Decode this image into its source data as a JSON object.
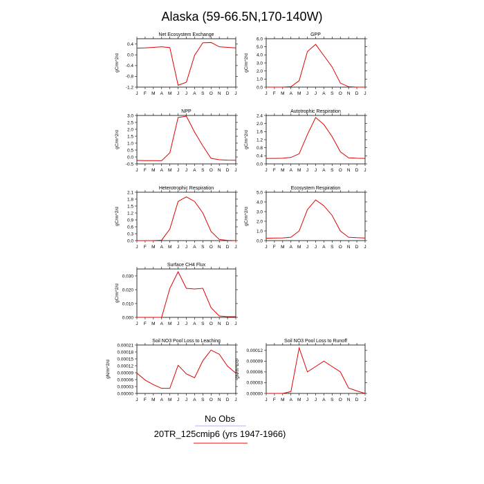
{
  "page": {
    "title": "Alaska (59-66.5N,170-140W)"
  },
  "legend": {
    "items": [
      {
        "label": "No Obs",
        "color": "#000000",
        "line_color": "#b0b0ff"
      },
      {
        "label": "20TR_125cmip6 (yrs 1947-1966)",
        "color": "#000000",
        "line_color": "#ff0000"
      }
    ]
  },
  "chart_data": [
    {
      "type": "line",
      "title": "Net Ecosystem Exchange",
      "ylabel": "gC/m^2/d",
      "x": [
        "J",
        "F",
        "M",
        "A",
        "M",
        "J",
        "J",
        "A",
        "S",
        "O",
        "N",
        "D",
        "J"
      ],
      "ylim": [
        -1.2,
        0.6
      ],
      "yticks": [
        "0.4",
        "0.0",
        "-0.4",
        "-0.8",
        "-1.2"
      ],
      "ytick_values": [
        0.4,
        0.0,
        -0.4,
        -0.8,
        -1.2
      ],
      "series": [
        {
          "color": "#e00000",
          "values": [
            0.25,
            0.26,
            0.28,
            0.3,
            0.27,
            -1.13,
            -1.02,
            -0.02,
            0.45,
            0.46,
            0.3,
            0.28,
            0.26
          ]
        }
      ]
    },
    {
      "type": "line",
      "title": "GPP",
      "ylabel": "gC/m^2/d",
      "x": [
        "J",
        "F",
        "M",
        "A",
        "M",
        "J",
        "J",
        "A",
        "S",
        "O",
        "N",
        "D",
        "J"
      ],
      "ylim": [
        0.0,
        6.0
      ],
      "yticks": [
        "6.0",
        "5.0",
        "4.0",
        "3.0",
        "2.0",
        "1.0",
        "0.0"
      ],
      "ytick_values": [
        6,
        5,
        4,
        3,
        2,
        1,
        0
      ],
      "series": [
        {
          "color": "#e00000",
          "values": [
            0.0,
            0.0,
            0.0,
            0.05,
            0.8,
            4.4,
            5.3,
            3.9,
            2.5,
            0.5,
            0.05,
            0.0,
            0.0
          ]
        }
      ]
    },
    {
      "type": "line",
      "title": "NPP",
      "ylabel": "gC/m^2/d",
      "x": [
        "J",
        "F",
        "M",
        "A",
        "M",
        "J",
        "J",
        "A",
        "S",
        "O",
        "N",
        "D",
        "J"
      ],
      "ylim": [
        -0.5,
        3.0
      ],
      "yticks": [
        "3.0",
        "2.5",
        "2.0",
        "1.5",
        "1.0",
        "0.5",
        "0.0",
        "-0.5"
      ],
      "ytick_values": [
        3.0,
        2.5,
        2.0,
        1.5,
        1.0,
        0.5,
        0.0,
        -0.5
      ],
      "series": [
        {
          "color": "#e00000",
          "values": [
            -0.25,
            -0.26,
            -0.26,
            -0.27,
            0.3,
            2.85,
            2.95,
            1.8,
            0.8,
            -0.1,
            -0.2,
            -0.23,
            -0.24
          ]
        }
      ]
    },
    {
      "type": "line",
      "title": "Autotrophic Respiration",
      "ylabel": "gC/m^2/d",
      "x": [
        "J",
        "F",
        "M",
        "A",
        "M",
        "J",
        "J",
        "A",
        "S",
        "O",
        "N",
        "D",
        "J"
      ],
      "ylim": [
        0.0,
        2.4
      ],
      "yticks": [
        "2.4",
        "2.0",
        "1.6",
        "1.2",
        "0.8",
        "0.4",
        "0.0"
      ],
      "ytick_values": [
        2.4,
        2.0,
        1.6,
        1.2,
        0.8,
        0.4,
        0.0
      ],
      "series": [
        {
          "color": "#e00000",
          "values": [
            0.27,
            0.27,
            0.28,
            0.32,
            0.5,
            1.45,
            2.3,
            1.95,
            1.35,
            0.6,
            0.3,
            0.28,
            0.27
          ]
        }
      ]
    },
    {
      "type": "line",
      "title": "Heterotrophic Respiration",
      "ylabel": "gC/m^2/d",
      "x": [
        "J",
        "F",
        "M",
        "A",
        "M",
        "J",
        "J",
        "A",
        "S",
        "O",
        "N",
        "D",
        "J"
      ],
      "ylim": [
        0.0,
        2.1
      ],
      "yticks": [
        "2.1",
        "1.8",
        "1.5",
        "1.2",
        "0.9",
        "0.6",
        "0.3",
        "0.0"
      ],
      "ytick_values": [
        2.1,
        1.8,
        1.5,
        1.2,
        0.9,
        0.6,
        0.3,
        0.0
      ],
      "series": [
        {
          "color": "#e00000",
          "values": [
            0.0,
            0.0,
            0.0,
            0.02,
            0.5,
            1.7,
            1.9,
            1.7,
            1.2,
            0.4,
            0.05,
            0.01,
            0.0
          ]
        }
      ]
    },
    {
      "type": "line",
      "title": "Ecosystem Respiration",
      "ylabel": "gC/m^2/d",
      "x": [
        "J",
        "F",
        "M",
        "A",
        "M",
        "J",
        "J",
        "A",
        "S",
        "O",
        "N",
        "D",
        "J"
      ],
      "ylim": [
        0.0,
        5.0
      ],
      "yticks": [
        "5.0",
        "4.0",
        "3.0",
        "2.0",
        "1.0",
        "0.0"
      ],
      "ytick_values": [
        5,
        4,
        3,
        2,
        1,
        0
      ],
      "series": [
        {
          "color": "#e00000",
          "values": [
            0.25,
            0.27,
            0.28,
            0.35,
            1.0,
            3.2,
            4.2,
            3.6,
            2.6,
            1.0,
            0.35,
            0.3,
            0.27
          ]
        }
      ]
    },
    {
      "type": "line",
      "title": "Surface CH4 Flux",
      "ylabel": "gC/m^2/d",
      "x": [
        "J",
        "F",
        "M",
        "A",
        "M",
        "J",
        "J",
        "A",
        "S",
        "O",
        "N",
        "D",
        "J"
      ],
      "ylim": [
        0.0,
        0.035
      ],
      "yticks": [
        "0.030",
        "0.020",
        "0.010",
        "0.000"
      ],
      "ytick_values": [
        0.03,
        0.02,
        0.01,
        0.0
      ],
      "series": [
        {
          "color": "#e00000",
          "values": [
            0.0,
            0.0,
            0.0,
            0.0,
            0.021,
            0.033,
            0.021,
            0.0205,
            0.021,
            0.007,
            0.001,
            0.0005,
            0.0005
          ]
        }
      ]
    },
    {
      "type": "line",
      "title": "Soil NO3 Pool Loss to Leaching",
      "ylabel": "gN/m^2/d",
      "x": [
        "J",
        "F",
        "M",
        "A",
        "M",
        "J",
        "J",
        "A",
        "S",
        "O",
        "N",
        "D",
        "J"
      ],
      "ylim": [
        0.0,
        0.00021
      ],
      "yticks": [
        "0.00021",
        "0.00018",
        "0.00015",
        "0.00012",
        "0.00009",
        "0.00006",
        "0.00003",
        "0.00000"
      ],
      "ytick_values": [
        0.00021,
        0.00018,
        0.00015,
        0.00012,
        9e-05,
        6e-05,
        3e-05,
        0.0
      ],
      "series": [
        {
          "color": "#e00000",
          "values": [
            8.8e-05,
            5.8e-05,
            3.8e-05,
            2.2e-05,
            2.2e-05,
            0.000122,
            8.5e-05,
            6.8e-05,
            0.000142,
            0.000188,
            0.00017,
            0.000118,
            8.8e-05
          ]
        }
      ]
    },
    {
      "type": "line",
      "title": "Soil NO3 Pool Loss to Runoff",
      "ylabel": "gN/m^2/d",
      "x": [
        "J",
        "F",
        "M",
        "A",
        "M",
        "J",
        "J",
        "A",
        "S",
        "O",
        "N",
        "D",
        "J"
      ],
      "ylim": [
        0.0,
        0.000135
      ],
      "yticks": [
        "0.00012",
        "0.00009",
        "0.00006",
        "0.00003",
        "0.00000"
      ],
      "ytick_values": [
        0.00012,
        9e-05,
        6e-05,
        3e-05,
        0.0
      ],
      "series": [
        {
          "color": "#e00000",
          "values": [
            0.0,
            0.0,
            0.0,
            5e-06,
            0.000127,
            6e-05,
            7.5e-05,
            9e-05,
            7.5e-05,
            6e-05,
            1.5e-05,
            7e-06,
            0.0
          ]
        }
      ]
    }
  ]
}
